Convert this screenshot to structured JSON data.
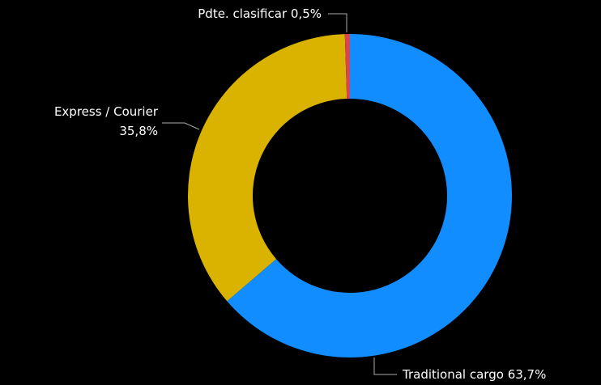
{
  "chart_data": {
    "type": "donut",
    "categories": [
      "Traditional cargo",
      "Express / Courier",
      "Pdte. clasificar"
    ],
    "values": [
      63.7,
      35.8,
      0.5
    ],
    "value_labels": [
      "63,7%",
      "35,8%",
      "0,5%"
    ],
    "colors": [
      "#118dff",
      "#d9b300",
      "#d64550"
    ]
  }
}
